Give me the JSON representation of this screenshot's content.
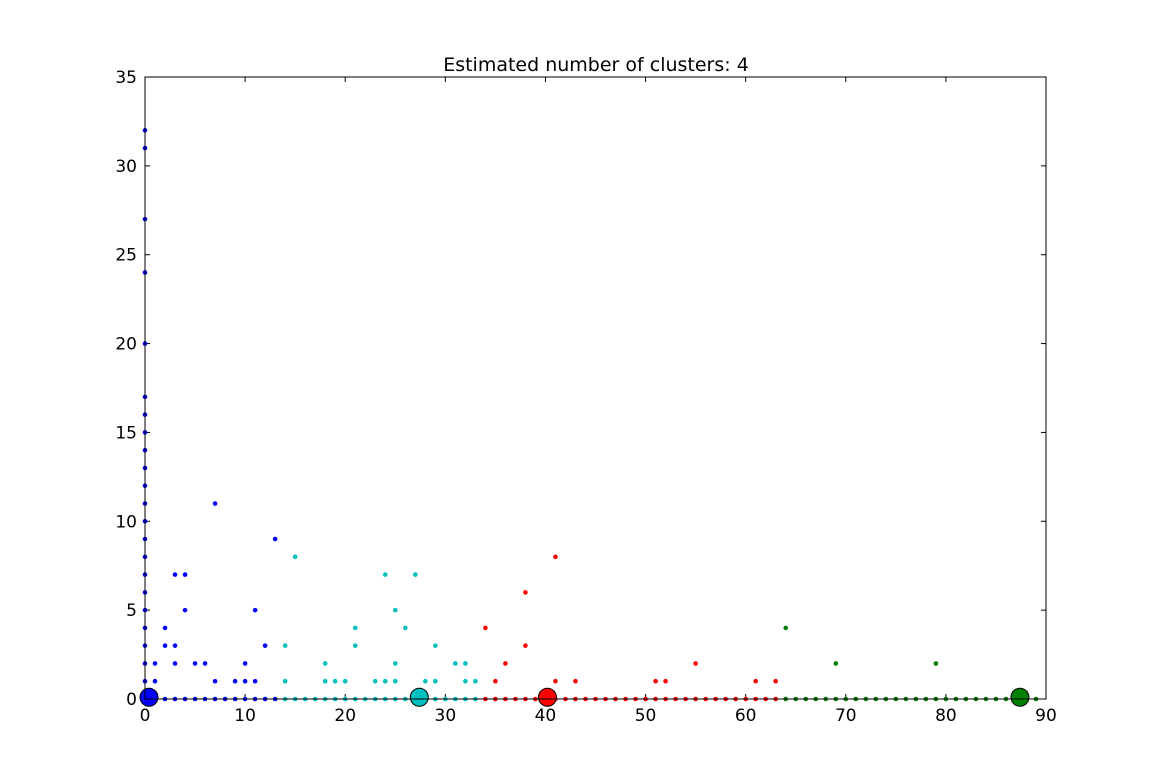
{
  "chart_data": {
    "type": "scatter",
    "title": "Estimated number of clusters: 4",
    "xlabel": "",
    "ylabel": "",
    "xlim": [
      0,
      90
    ],
    "ylim": [
      0,
      35
    ],
    "xticks": [
      "0",
      "10",
      "20",
      "30",
      "40",
      "50",
      "60",
      "70",
      "80",
      "90"
    ],
    "yticks": [
      "0",
      "5",
      "10",
      "15",
      "20",
      "25",
      "30",
      "35"
    ],
    "grid": false,
    "legend": "none",
    "series": [
      {
        "color": "#0000ff",
        "points": [
          [
            0,
            32
          ],
          [
            0,
            31
          ],
          [
            0,
            27
          ],
          [
            0,
            24
          ],
          [
            0,
            20
          ],
          [
            0,
            17
          ],
          [
            0,
            16
          ],
          [
            0,
            15
          ],
          [
            0,
            14
          ],
          [
            0,
            13
          ],
          [
            0,
            12
          ],
          [
            0,
            11
          ],
          [
            0,
            10
          ],
          [
            0,
            9
          ],
          [
            0,
            8
          ],
          [
            0,
            7
          ],
          [
            0,
            6
          ],
          [
            0,
            5
          ],
          [
            0,
            4
          ],
          [
            0,
            3
          ],
          [
            0,
            2
          ],
          [
            0,
            1
          ],
          [
            1,
            2
          ],
          [
            1,
            1
          ],
          [
            2,
            4
          ],
          [
            2,
            3
          ],
          [
            3,
            7
          ],
          [
            3,
            3
          ],
          [
            3,
            2
          ],
          [
            4,
            7
          ],
          [
            4,
            5
          ],
          [
            5,
            2
          ],
          [
            6,
            2
          ],
          [
            7,
            11
          ],
          [
            7,
            1
          ],
          [
            9,
            1
          ],
          [
            10,
            2
          ],
          [
            10,
            1
          ],
          [
            11,
            5
          ],
          [
            11,
            1
          ],
          [
            12,
            3
          ],
          [
            13,
            9
          ],
          [
            0,
            0
          ],
          [
            1,
            0
          ],
          [
            2,
            0
          ],
          [
            3,
            0
          ],
          [
            4,
            0
          ],
          [
            5,
            0
          ],
          [
            6,
            0
          ],
          [
            7,
            0
          ],
          [
            8,
            0
          ],
          [
            9,
            0
          ],
          [
            10,
            0
          ],
          [
            11,
            0
          ],
          [
            12,
            0
          ],
          [
            13,
            0
          ]
        ],
        "centroid": [
          0.4,
          0.1
        ]
      },
      {
        "color": "#00bfbf",
        "points": [
          [
            15,
            8
          ],
          [
            14,
            3
          ],
          [
            14,
            1
          ],
          [
            18,
            2
          ],
          [
            18,
            1
          ],
          [
            19,
            1
          ],
          [
            20,
            1
          ],
          [
            21,
            4
          ],
          [
            21,
            3
          ],
          [
            23,
            1
          ],
          [
            24,
            7
          ],
          [
            24,
            1
          ],
          [
            25,
            5
          ],
          [
            25,
            2
          ],
          [
            25,
            1
          ],
          [
            26,
            4
          ],
          [
            27,
            7
          ],
          [
            28,
            1
          ],
          [
            29,
            3
          ],
          [
            29,
            1
          ],
          [
            31,
            2
          ],
          [
            32,
            2
          ],
          [
            32,
            1
          ],
          [
            33,
            1
          ],
          [
            14,
            0
          ],
          [
            15,
            0
          ],
          [
            16,
            0
          ],
          [
            17,
            0
          ],
          [
            18,
            0
          ],
          [
            19,
            0
          ],
          [
            20,
            0
          ],
          [
            21,
            0
          ],
          [
            22,
            0
          ],
          [
            23,
            0
          ],
          [
            24,
            0
          ],
          [
            25,
            0
          ],
          [
            26,
            0
          ],
          [
            27,
            0
          ],
          [
            28,
            0
          ],
          [
            29,
            0
          ],
          [
            30,
            0
          ],
          [
            31,
            0
          ],
          [
            32,
            0
          ],
          [
            33,
            0
          ]
        ],
        "centroid": [
          27.4,
          0.1
        ]
      },
      {
        "color": "#ff0000",
        "points": [
          [
            34,
            4
          ],
          [
            35,
            1
          ],
          [
            36,
            2
          ],
          [
            38,
            6
          ],
          [
            38,
            3
          ],
          [
            41,
            8
          ],
          [
            41,
            1
          ],
          [
            43,
            1
          ],
          [
            51,
            1
          ],
          [
            52,
            1
          ],
          [
            55,
            2
          ],
          [
            61,
            1
          ],
          [
            63,
            1
          ],
          [
            34,
            0
          ],
          [
            35,
            0
          ],
          [
            36,
            0
          ],
          [
            37,
            0
          ],
          [
            38,
            0
          ],
          [
            39,
            0
          ],
          [
            40,
            0
          ],
          [
            41,
            0
          ],
          [
            42,
            0
          ],
          [
            43,
            0
          ],
          [
            44,
            0
          ],
          [
            45,
            0
          ],
          [
            46,
            0
          ],
          [
            47,
            0
          ],
          [
            48,
            0
          ],
          [
            49,
            0
          ],
          [
            50,
            0
          ],
          [
            51,
            0
          ],
          [
            52,
            0
          ],
          [
            53,
            0
          ],
          [
            54,
            0
          ],
          [
            55,
            0
          ],
          [
            56,
            0
          ],
          [
            57,
            0
          ],
          [
            58,
            0
          ],
          [
            59,
            0
          ],
          [
            60,
            0
          ],
          [
            61,
            0
          ],
          [
            62,
            0
          ],
          [
            63,
            0
          ]
        ],
        "centroid": [
          40.2,
          0.1
        ]
      },
      {
        "color": "#008000",
        "points": [
          [
            64,
            4
          ],
          [
            69,
            2
          ],
          [
            79,
            2
          ],
          [
            64,
            0
          ],
          [
            65,
            0
          ],
          [
            66,
            0
          ],
          [
            67,
            0
          ],
          [
            68,
            0
          ],
          [
            69,
            0
          ],
          [
            70,
            0
          ],
          [
            71,
            0
          ],
          [
            72,
            0
          ],
          [
            73,
            0
          ],
          [
            74,
            0
          ],
          [
            75,
            0
          ],
          [
            76,
            0
          ],
          [
            77,
            0
          ],
          [
            78,
            0
          ],
          [
            79,
            0
          ],
          [
            80,
            0
          ],
          [
            81,
            0
          ],
          [
            82,
            0
          ],
          [
            83,
            0
          ],
          [
            84,
            0
          ],
          [
            85,
            0
          ],
          [
            86,
            0
          ],
          [
            87,
            0
          ],
          [
            88,
            0
          ],
          [
            89,
            0
          ]
        ],
        "centroid": [
          87.4,
          0.1
        ]
      }
    ]
  }
}
